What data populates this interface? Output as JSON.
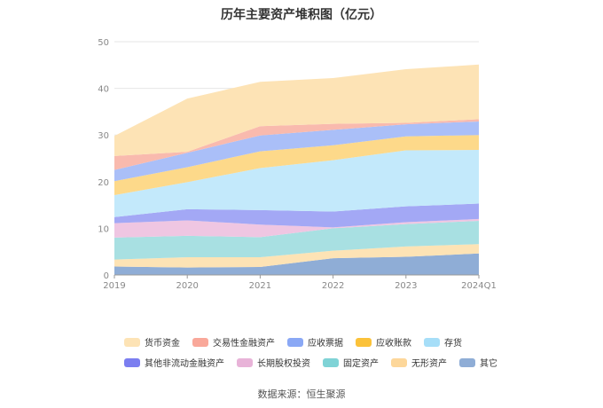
{
  "chart_data": {
    "type": "area",
    "stacked": true,
    "title": "历年主要资产堆积图（亿元）",
    "categories": [
      "2019",
      "2020",
      "2021",
      "2022",
      "2023",
      "2024Q1"
    ],
    "ylim": [
      0,
      50
    ],
    "yticks": [
      0,
      10,
      20,
      30,
      40,
      50
    ],
    "series": [
      {
        "name": "其它",
        "color": "#8fadd6",
        "values": [
          1.8,
          1.6,
          1.7,
          3.6,
          3.9,
          4.6
        ]
      },
      {
        "name": "无形资产",
        "color": "#fde3b5",
        "values": [
          1.5,
          2.2,
          2.1,
          1.6,
          2.2,
          2.0
        ]
      },
      {
        "name": "固定资产",
        "color": "#a8e0e2",
        "values": [
          4.7,
          4.6,
          4.3,
          4.8,
          4.8,
          5.0
        ]
      },
      {
        "name": "长期股权投资",
        "color": "#efc6e2",
        "values": [
          3.1,
          3.3,
          2.7,
          0.2,
          0.4,
          0.4
        ]
      },
      {
        "name": "其他非流动金融资产",
        "color": "#a3a8f5",
        "values": [
          1.3,
          2.4,
          3.1,
          3.4,
          3.4,
          3.3
        ]
      },
      {
        "name": "存货",
        "color": "#c3e9fb",
        "values": [
          4.7,
          5.8,
          9.0,
          11.0,
          12.0,
          11.5
        ]
      },
      {
        "name": "应收账款",
        "color": "#fdd98a",
        "values": [
          3.0,
          3.2,
          3.6,
          3.2,
          3.0,
          3.2
        ]
      },
      {
        "name": "应收票据",
        "color": "#aabff8",
        "values": [
          2.4,
          3.1,
          3.4,
          3.3,
          2.6,
          2.9
        ]
      },
      {
        "name": "交易性金融资产",
        "color": "#f9baae",
        "values": [
          3.0,
          0.2,
          2.0,
          1.3,
          0.3,
          0.5
        ]
      },
      {
        "name": "货币资金",
        "color": "#fde3b5",
        "values": [
          4.3,
          11.4,
          9.5,
          9.8,
          11.5,
          11.7
        ]
      }
    ]
  },
  "legend": [
    [
      {
        "label": "货币资金",
        "color": "#fde3b5"
      },
      {
        "label": "交易性金融资产",
        "color": "#f9a89a"
      },
      {
        "label": "应收票据",
        "color": "#8aa8f5"
      },
      {
        "label": "应收账款",
        "color": "#fbc23a"
      },
      {
        "label": "存货",
        "color": "#a6def8"
      }
    ],
    [
      {
        "label": "其他非流动金融资产",
        "color": "#7b7ef0"
      },
      {
        "label": "长期股权投资",
        "color": "#e8b3d8"
      },
      {
        "label": "固定资产",
        "color": "#7fd3d6"
      },
      {
        "label": "无形资产",
        "color": "#fdd79a"
      },
      {
        "label": "其它",
        "color": "#8fadd6"
      }
    ]
  ],
  "source": "数据来源：恒生聚源"
}
